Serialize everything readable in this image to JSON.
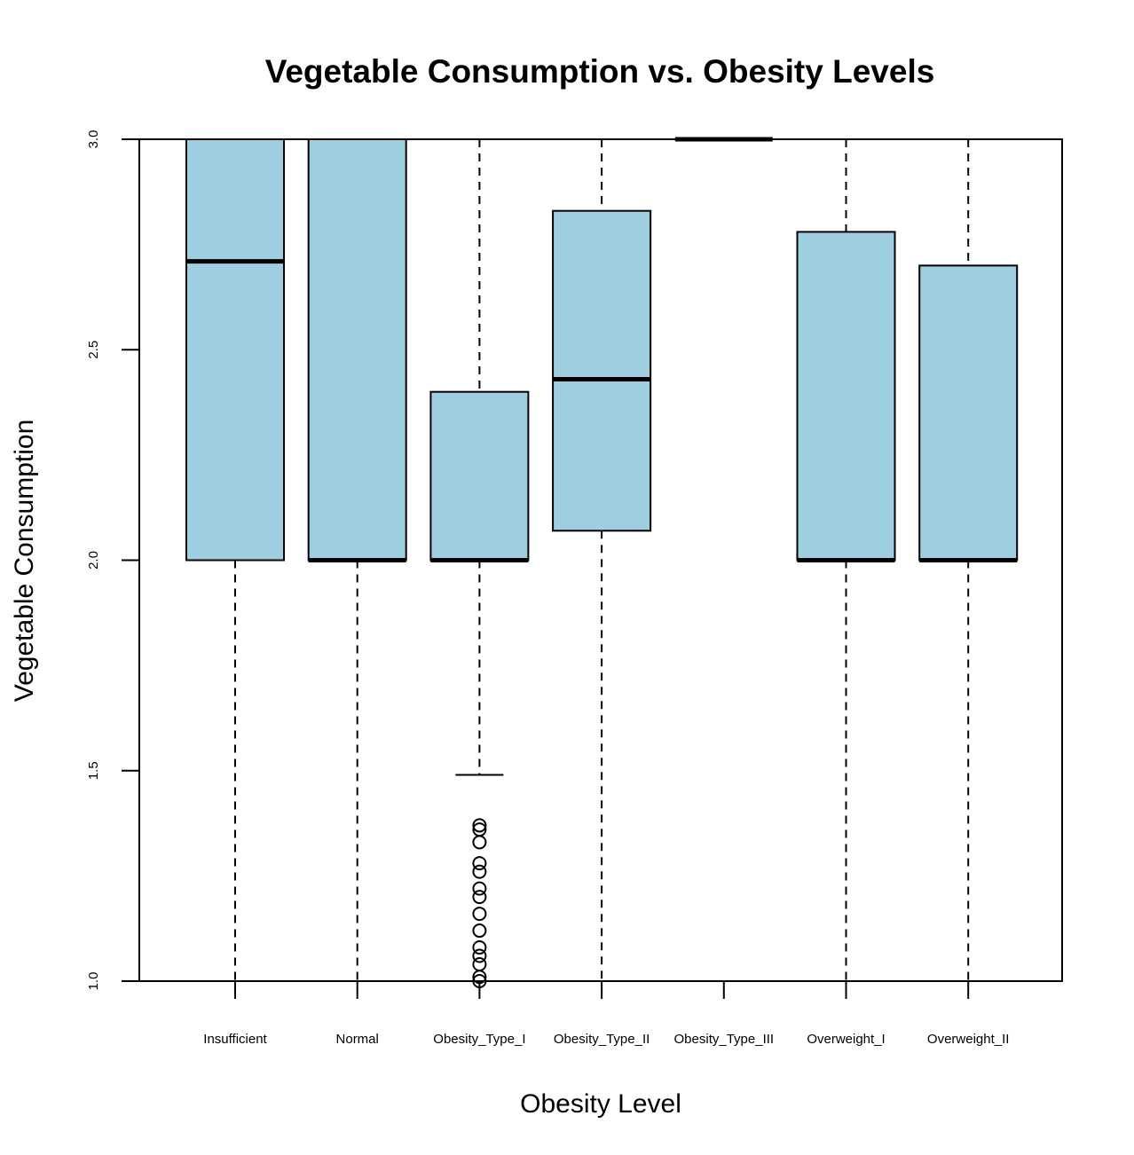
{
  "chart_data": {
    "type": "boxplot",
    "title": "Vegetable Consumption vs. Obesity Levels",
    "xlabel": "Obesity Level",
    "ylabel": "Vegetable Consumption",
    "ylim": [
      1.0,
      3.0
    ],
    "yticks": [
      "1.0",
      "1.5",
      "2.0",
      "2.5",
      "3.0"
    ],
    "box_color": "#9ecfe0",
    "grid": false,
    "categories": [
      "Insufficient",
      "Normal",
      "Obesity_Type_I",
      "Obesity_Type_II",
      "Obesity_Type_III",
      "Overweight_I",
      "Overweight_II"
    ],
    "boxes": [
      {
        "name": "Insufficient",
        "min": 1.0,
        "q1": 2.0,
        "median": 2.71,
        "q3": 3.0,
        "max": 3.0,
        "outliers": []
      },
      {
        "name": "Normal",
        "min": 1.0,
        "q1": 2.0,
        "median": 2.0,
        "q3": 3.0,
        "max": 3.0,
        "outliers": []
      },
      {
        "name": "Obesity_Type_I",
        "min": 1.49,
        "q1": 2.0,
        "median": 2.0,
        "q3": 2.4,
        "max": 3.0,
        "outliers": [
          1.37,
          1.36,
          1.33,
          1.28,
          1.26,
          1.22,
          1.2,
          1.16,
          1.12,
          1.08,
          1.06,
          1.04,
          1.01,
          1.0
        ]
      },
      {
        "name": "Obesity_Type_II",
        "min": 1.0,
        "q1": 2.07,
        "median": 2.43,
        "q3": 2.83,
        "max": 3.0,
        "outliers": []
      },
      {
        "name": "Obesity_Type_III",
        "min": 3.0,
        "q1": 3.0,
        "median": 3.0,
        "q3": 3.0,
        "max": 3.0,
        "outliers": []
      },
      {
        "name": "Overweight_I",
        "min": 1.0,
        "q1": 2.0,
        "median": 2.0,
        "q3": 2.78,
        "max": 3.0,
        "outliers": []
      },
      {
        "name": "Overweight_II",
        "min": 1.0,
        "q1": 2.0,
        "median": 2.0,
        "q3": 2.7,
        "max": 3.0,
        "outliers": []
      }
    ]
  }
}
